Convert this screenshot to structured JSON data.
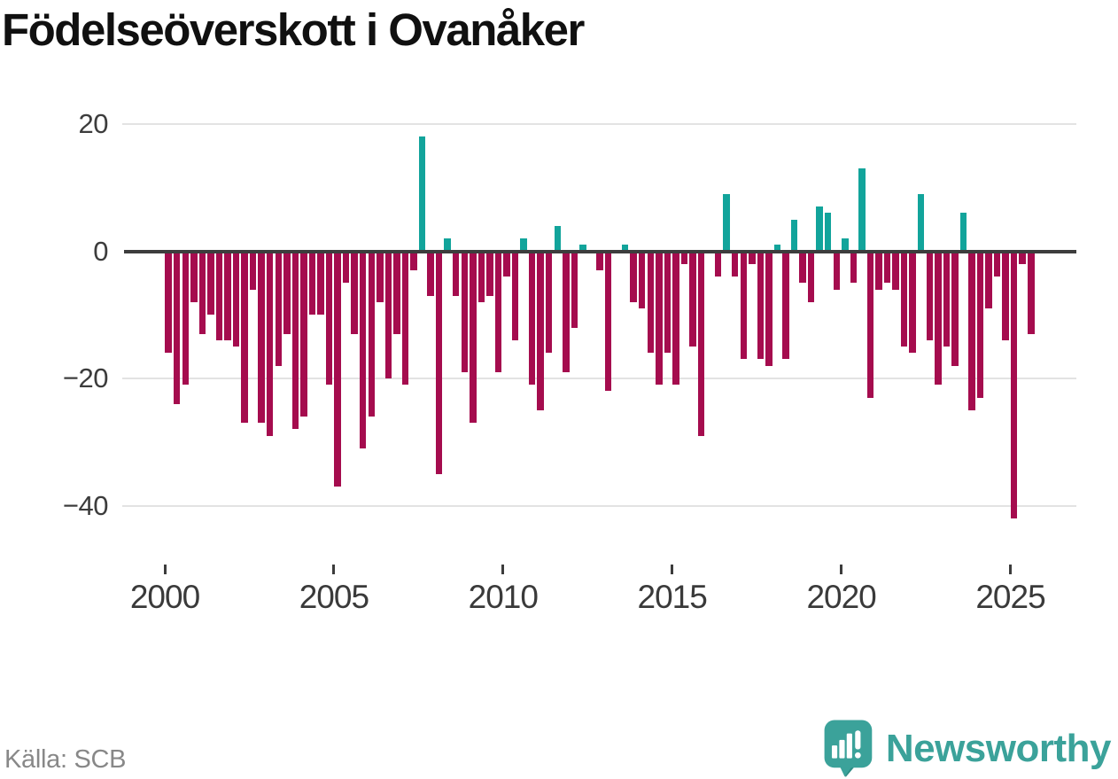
{
  "title": "Födelseöverskott i Ovanåker",
  "source": "Källa: SCB",
  "branding": {
    "name": "Newsworthy",
    "icon": "speech-bubble-bar-chart-exclamation"
  },
  "colors": {
    "positive": "#12a49b",
    "negative": "#a50c4e",
    "zero_line": "#3d3d3d",
    "gridline": "#e3e3e3",
    "axis_text": "#3c3c3c",
    "title_text": "#101010",
    "source_text": "#888888",
    "brand_teal": "#3ba29a",
    "brand_teal_dark": "#2e8c84"
  },
  "chart_data": {
    "type": "bar",
    "title": "Födelseöverskott i Ovanåker",
    "xlabel": "",
    "ylabel": "",
    "grid": true,
    "legend": false,
    "ylim": [
      -44,
      21
    ],
    "y_ticks": [
      20,
      0,
      -20,
      -40
    ],
    "y_tick_labels": [
      "20",
      "0",
      "−20",
      "−40"
    ],
    "x_tick_years": [
      2000,
      2005,
      2010,
      2015,
      2020,
      2025
    ],
    "x_tick_labels": [
      "2000",
      "2005",
      "2010",
      "2015",
      "2020",
      "2025"
    ],
    "categories": [
      "2000 Q1",
      "2000 Q2",
      "2000 Q3",
      "2000 Q4",
      "2001 Q1",
      "2001 Q2",
      "2001 Q3",
      "2001 Q4",
      "2002 Q1",
      "2002 Q2",
      "2002 Q3",
      "2002 Q4",
      "2003 Q1",
      "2003 Q2",
      "2003 Q3",
      "2003 Q4",
      "2004 Q1",
      "2004 Q2",
      "2004 Q3",
      "2004 Q4",
      "2005 Q1",
      "2005 Q2",
      "2005 Q3",
      "2005 Q4",
      "2006 Q1",
      "2006 Q2",
      "2006 Q3",
      "2006 Q4",
      "2007 Q1",
      "2007 Q2",
      "2007 Q3",
      "2007 Q4",
      "2008 Q1",
      "2008 Q2",
      "2008 Q3",
      "2008 Q4",
      "2009 Q1",
      "2009 Q2",
      "2009 Q3",
      "2009 Q4",
      "2010 Q1",
      "2010 Q2",
      "2010 Q3",
      "2010 Q4",
      "2011 Q1",
      "2011 Q2",
      "2011 Q3",
      "2011 Q4",
      "2012 Q1",
      "2012 Q2",
      "2012 Q3",
      "2012 Q4",
      "2013 Q1",
      "2013 Q2",
      "2013 Q3",
      "2013 Q4",
      "2014 Q1",
      "2014 Q2",
      "2014 Q3",
      "2014 Q4",
      "2015 Q1",
      "2015 Q2",
      "2015 Q3",
      "2015 Q4",
      "2016 Q1",
      "2016 Q2",
      "2016 Q3",
      "2016 Q4",
      "2017 Q1",
      "2017 Q2",
      "2017 Q3",
      "2017 Q4",
      "2018 Q1",
      "2018 Q2",
      "2018 Q3",
      "2018 Q4",
      "2019 Q1",
      "2019 Q2",
      "2019 Q3",
      "2019 Q4",
      "2020 Q1",
      "2020 Q2",
      "2020 Q3",
      "2020 Q4",
      "2021 Q1",
      "2021 Q2",
      "2021 Q3",
      "2021 Q4",
      "2022 Q1",
      "2022 Q2",
      "2022 Q3",
      "2022 Q4",
      "2023 Q1",
      "2023 Q2",
      "2023 Q3",
      "2023 Q4",
      "2024 Q1",
      "2024 Q2",
      "2024 Q3",
      "2024 Q4",
      "2025 Q1",
      "2025 Q2",
      "2025 Q3"
    ],
    "values": [
      -16,
      -24,
      -21,
      -8,
      -13,
      -10,
      -14,
      -14,
      -15,
      -27,
      -6,
      -27,
      -29,
      -18,
      -13,
      -28,
      -26,
      -10,
      -10,
      -21,
      -37,
      -5,
      -13,
      -31,
      -26,
      -8,
      -20,
      -13,
      -21,
      -3,
      18,
      -7,
      -35,
      2,
      -7,
      -19,
      -27,
      -8,
      -7,
      -19,
      -4,
      -14,
      2,
      -21,
      -25,
      -16,
      4,
      -19,
      -12,
      1,
      0,
      -3,
      -22,
      0,
      1,
      -8,
      -9,
      -16,
      -21,
      -16,
      -21,
      -2,
      -15,
      -29,
      0,
      -4,
      9,
      -4,
      -17,
      -2,
      -17,
      -18,
      1,
      -17,
      5,
      -5,
      -8,
      7,
      6,
      -6,
      2,
      -5,
      13,
      -23,
      -6,
      -5,
      -6,
      -15,
      -16,
      9,
      -14,
      -21,
      -15,
      -18,
      6,
      -25,
      -23,
      -9,
      -4,
      -14,
      -42,
      -2,
      -13
    ]
  }
}
